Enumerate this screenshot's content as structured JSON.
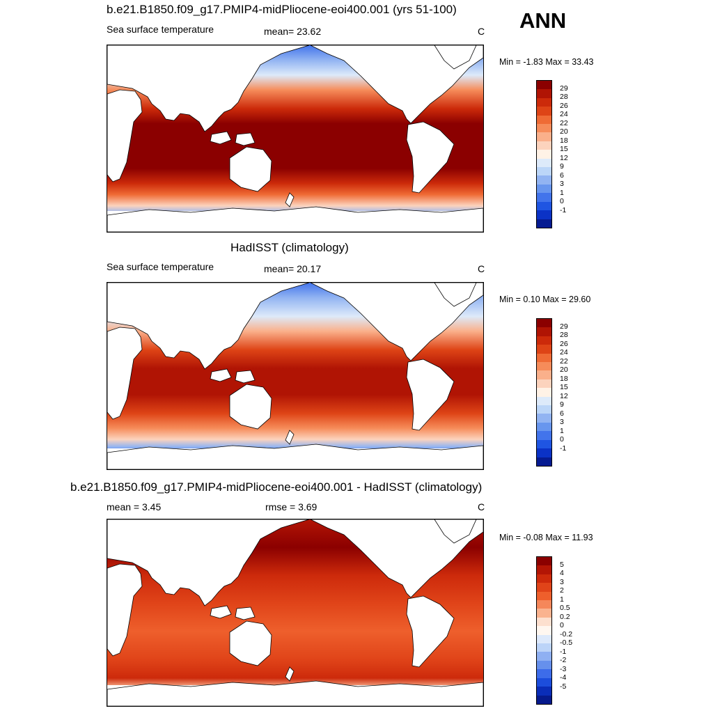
{
  "season_label": "ANN",
  "panels": [
    {
      "title": "b.e21.B1850.f09_g17.PMIP4-midPliocene-eoi400.001 (yrs 51-100)",
      "left_label": "Sea surface temperature",
      "center_label": "mean=  23.62",
      "units": "C",
      "minmax": "Min =  -1.83 Max =  33.43",
      "colorbar_labels": [
        "29",
        "28",
        "26",
        "24",
        "22",
        "20",
        "18",
        "15",
        "12",
        "9",
        "6",
        "3",
        "1",
        "0",
        "-1"
      ],
      "colorbar_colors": [
        "#8b0000",
        "#b01404",
        "#cc2a0a",
        "#de4416",
        "#ef6b35",
        "#f68c5a",
        "#fab08b",
        "#fcd3bd",
        "#fff2e6",
        "#ddeafa",
        "#bcd6f8",
        "#92b4f2",
        "#6896ee",
        "#4274eb",
        "#1f55e2",
        "#0b32c6",
        "#061b91"
      ],
      "map_style": "model"
    },
    {
      "title": "HadISST (climatology)",
      "left_label": "Sea surface temperature",
      "center_label": "mean=  20.17",
      "units": "C",
      "minmax": "Min =   0.10 Max =  29.60",
      "colorbar_labels": [
        "29",
        "28",
        "26",
        "24",
        "22",
        "20",
        "18",
        "15",
        "12",
        "9",
        "6",
        "3",
        "1",
        "0",
        "-1"
      ],
      "colorbar_colors": [
        "#8b0000",
        "#b01404",
        "#cc2a0a",
        "#de4416",
        "#ef6b35",
        "#f68c5a",
        "#fab08b",
        "#fcd3bd",
        "#fff2e6",
        "#ddeafa",
        "#bcd6f8",
        "#92b4f2",
        "#6896ee",
        "#4274eb",
        "#1f55e2",
        "#0b32c6",
        "#061b91"
      ],
      "map_style": "obs"
    },
    {
      "title": "b.e21.B1850.f09_g17.PMIP4-midPliocene-eoi400.001 - HadISST (climatology)",
      "left_label": "mean =   3.45",
      "center_label": "rmse =   3.69",
      "units": "C",
      "minmax": "Min =  -0.08 Max =  11.93",
      "colorbar_labels": [
        "5",
        "4",
        "3",
        "2",
        "1",
        "0.5",
        "0.2",
        "0",
        "-0.2",
        "-0.5",
        "-1",
        "-2",
        "-3",
        "-4",
        "-5"
      ],
      "colorbar_colors": [
        "#8b0000",
        "#b31505",
        "#cd2a0b",
        "#e04419",
        "#ee5f2c",
        "#f5875a",
        "#fab38f",
        "#fde0cf",
        "#fff7f0",
        "#dde9fb",
        "#bcd4f8",
        "#8fb0f2",
        "#6690ec",
        "#3d6cea",
        "#1c4ddc",
        "#0a2db8",
        "#061a8c"
      ],
      "map_style": "diff"
    }
  ]
}
